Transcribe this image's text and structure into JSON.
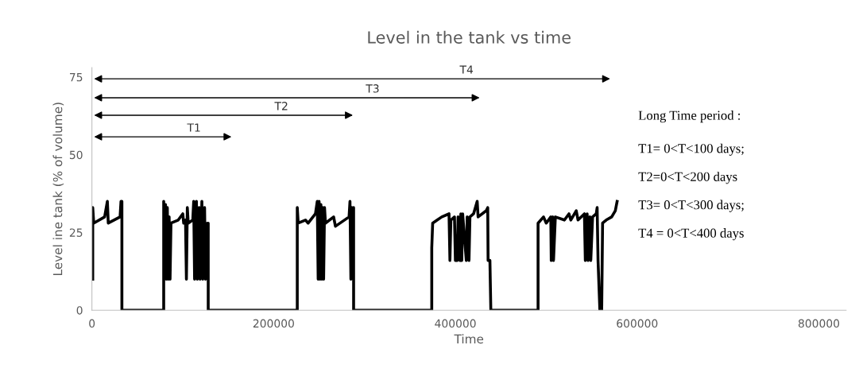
{
  "chart_data": {
    "type": "line",
    "title": "Level in the tank vs time",
    "xlabel": "Time",
    "ylabel": "Level ine tank (% of volume)",
    "xlim": [
      0,
      830000
    ],
    "xticks": [
      0,
      200000,
      400000,
      600000,
      800000
    ],
    "ylim": [
      0,
      78
    ],
    "yticks": [
      0,
      25,
      50,
      75
    ],
    "grid": false,
    "legend": false,
    "series": [
      {
        "color": "#000000",
        "x": [
          900,
          900,
          2000,
          14000,
          17000,
          18000,
          31000,
          32000,
          33000,
          33000,
          79000,
          79000,
          80000,
          81000,
          82000,
          83000,
          84000,
          85000,
          86000,
          87000,
          95000,
          100000,
          101000,
          103000,
          104000,
          105000,
          106000,
          111000,
          112000,
          113000,
          115000,
          116000,
          118000,
          119000,
          121000,
          122000,
          124000,
          125000,
          127000,
          128000,
          128000,
          226000,
          226000,
          227000,
          235000,
          238000,
          246000,
          248000,
          249000,
          250000,
          251000,
          252000,
          253000,
          254000,
          255000,
          256000,
          257000,
          266000,
          268000,
          283000,
          284000,
          285000,
          286000,
          287000,
          288000,
          288000,
          374000,
          374000,
          375000,
          380000,
          385000,
          393000,
          394000,
          395000,
          399000,
          400000,
          402000,
          403000,
          405000,
          406000,
          407000,
          408000,
          412000,
          413000,
          415000,
          416000,
          420000,
          424000,
          425000,
          434000,
          435600,
          436000,
          438000,
          439000,
          491000,
          491000,
          497000,
          500000,
          505000,
          505500,
          507000,
          508000,
          510000,
          520000,
          525000,
          527000,
          533000,
          535000,
          542000,
          543000,
          545000,
          546000,
          548000,
          549000,
          551000,
          555000,
          556000,
          557000,
          559000,
          561000,
          562000,
          566000,
          572000,
          576000,
          578000
        ],
        "values": [
          10,
          33,
          28,
          30,
          35,
          28,
          30,
          35,
          35,
          0,
          0,
          35,
          10,
          34,
          10,
          33,
          10,
          30,
          10,
          28,
          29,
          31,
          28,
          29,
          10,
          33,
          28,
          29,
          35,
          10,
          35,
          10,
          33,
          10,
          35,
          10,
          33,
          10,
          28,
          28,
          0,
          0,
          33,
          28,
          29,
          28,
          31,
          35,
          10,
          35,
          10,
          34,
          10,
          33,
          10,
          33,
          28,
          30,
          27,
          30,
          35,
          10,
          33,
          12,
          33,
          0,
          0,
          20,
          28,
          29,
          30,
          31,
          16,
          29,
          30,
          16,
          16,
          30,
          16,
          31,
          16,
          31,
          16,
          30,
          16,
          30,
          31,
          35,
          30,
          32,
          33,
          16,
          16,
          0,
          0,
          28,
          30,
          28,
          30,
          16,
          30,
          16,
          30,
          29,
          31,
          29,
          32,
          29,
          31,
          16,
          31,
          16,
          30,
          16,
          30,
          31,
          33,
          16,
          0,
          0,
          28,
          29,
          30,
          32,
          35
        ]
      }
    ],
    "annotations": [
      "T1",
      "T2",
      "T3",
      "T4",
      "Long Time period :",
      "T1= 0<T<100 days;",
      "T2=0<T<200 days",
      "T3= 0<T<300 days;",
      "T4 = 0<T<400 days"
    ]
  }
}
